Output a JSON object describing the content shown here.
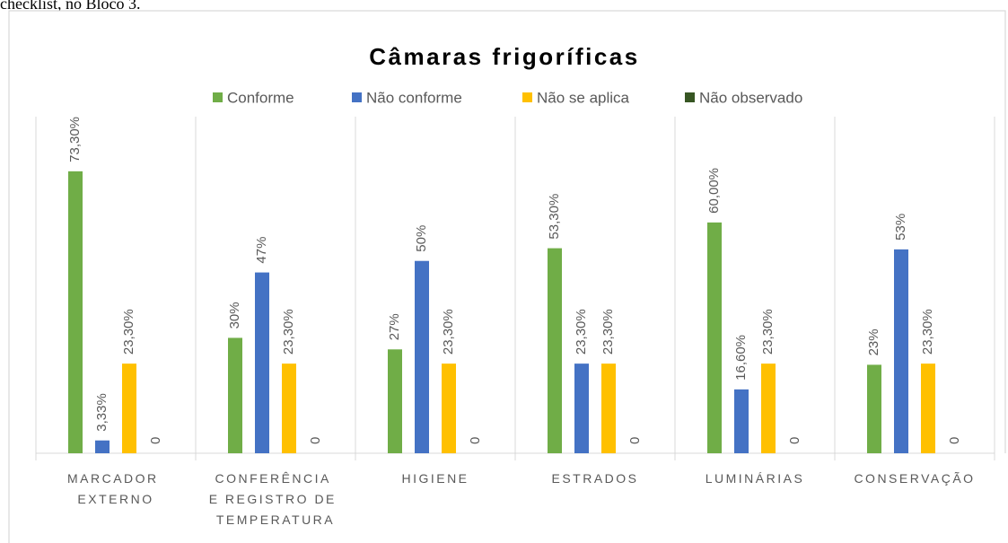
{
  "document_text": "checklist, no Bloco 3.",
  "chart_data": {
    "type": "bar",
    "title": "Câmaras frigoríficas",
    "categories": [
      "MARCADOR EXTERNO",
      "CONFERÊNCIA E REGISTRO DE TEMPERATURA",
      "HIGIENE",
      "ESTRADOS",
      "LUMINÁRIAS",
      "CONSERVAÇÃO"
    ],
    "series": [
      {
        "name": "Conforme",
        "color": "#70ad47",
        "values": [
          73.3,
          30,
          27,
          53.3,
          60,
          23
        ],
        "value_labels": [
          "73,30%",
          "30%",
          "27%",
          "53,30%",
          "60,00%",
          "23%"
        ]
      },
      {
        "name": "Não conforme",
        "color": "#4472c4",
        "values": [
          3.33,
          47,
          50,
          23.3,
          16.6,
          53
        ],
        "value_labels": [
          "3,33%",
          "47%",
          "50%",
          "23,30%",
          "16,60%",
          "53%"
        ]
      },
      {
        "name": "Não se aplica",
        "color": "#ffc000",
        "values": [
          23.3,
          23.3,
          23.3,
          23.3,
          23.3,
          23.3
        ],
        "value_labels": [
          "23,30%",
          "23,30%",
          "23,30%",
          "23,30%",
          "23,30%",
          "23,30%"
        ]
      },
      {
        "name": "Não observado",
        "color": "#375623",
        "values": [
          0,
          0,
          0,
          0,
          0,
          0
        ],
        "value_labels": [
          "0",
          "0",
          "0",
          "0",
          "0",
          "0"
        ]
      }
    ],
    "ylim": [
      0,
      87.5
    ],
    "legend": "top"
  }
}
